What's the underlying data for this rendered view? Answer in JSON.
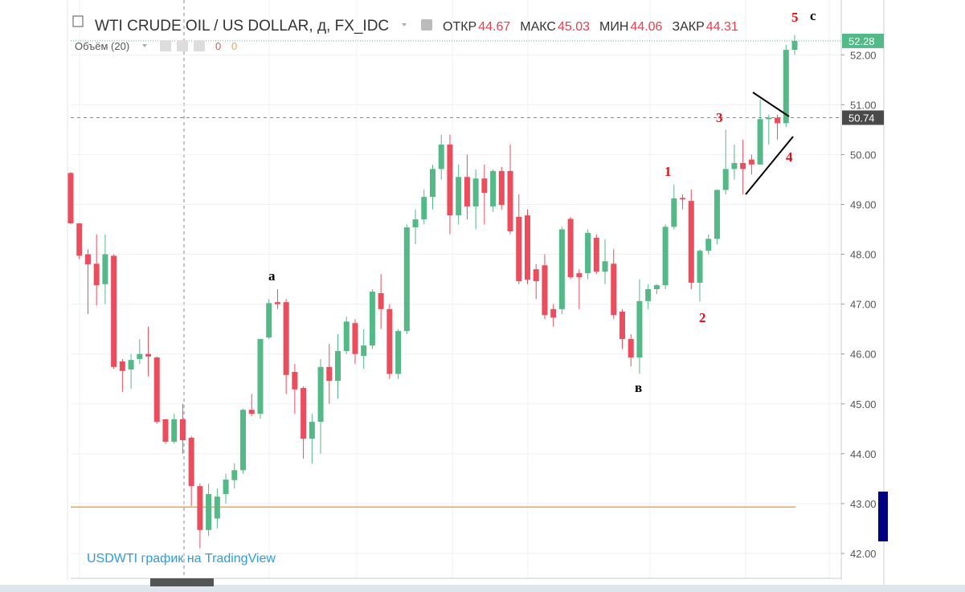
{
  "header": {
    "symbol": "WTI CRUDE OIL / US DOLLAR, д, FX_IDC",
    "ohlc": [
      {
        "label": "ОТКР",
        "value": 44.67
      },
      {
        "label": "МАКС",
        "value": 45.03
      },
      {
        "label": "МИН",
        "value": 44.06
      },
      {
        "label": "ЗАКР",
        "value": 44.31
      }
    ],
    "volume_label": "Объём (20)",
    "volume_values": [
      0,
      0
    ]
  },
  "chart_data": {
    "type": "candlestick",
    "open": [
      49.63,
      48.62,
      48.0,
      47.81,
      47.4,
      47.97,
      45.85,
      45.69,
      45.9,
      46.0,
      45.93,
      44.69,
      44.24,
      44.69,
      44.32,
      43.35,
      42.47,
      42.7,
      43.19,
      43.47,
      43.67,
      44.88,
      44.8,
      46.33,
      47.04,
      47.04,
      45.64,
      45.32,
      44.3,
      44.64,
      45.74,
      45.46,
      46.06,
      46.62,
      45.96,
      46.17,
      47.22,
      46.9,
      45.6,
      46.46,
      48.54,
      48.7,
      49.15,
      49.71,
      50.2,
      48.78,
      49.55,
      48.96,
      49.52,
      48.96,
      49.67,
      49.67,
      48.75,
      48.78,
      47.7,
      47.78,
      46.9,
      46.9,
      48.71,
      47.62,
      47.62,
      48.33,
      47.65,
      47.81,
      46.85,
      46.3,
      45.93,
      47.06,
      47.3,
      47.38,
      48.55,
      49.13,
      49.07,
      47.43,
      48.07,
      48.31,
      49.29,
      49.71,
      49.83,
      49.9,
      49.8,
      50.71,
      50.74,
      50.63,
      52.1
    ],
    "high": [
      49.65,
      48.62,
      48.1,
      48.4,
      48.4,
      48.0,
      45.9,
      46.0,
      46.3,
      46.55,
      45.95,
      44.7,
      44.8,
      45.0,
      44.35,
      43.4,
      43.4,
      43.3,
      43.6,
      43.8,
      44.9,
      45.2,
      46.3,
      47.1,
      47.3,
      47.1,
      45.8,
      45.35,
      44.8,
      45.9,
      46.2,
      46.4,
      46.75,
      46.7,
      46.5,
      47.3,
      47.6,
      47.0,
      46.5,
      48.6,
      48.9,
      49.3,
      49.8,
      50.4,
      50.4,
      49.8,
      50.0,
      49.7,
      49.8,
      49.7,
      49.75,
      50.2,
      49.2,
      48.9,
      47.8,
      48.0,
      47.0,
      48.55,
      48.75,
      47.7,
      48.5,
      48.4,
      48.3,
      48.1,
      46.9,
      46.4,
      47.5,
      47.4,
      47.4,
      48.6,
      49.4,
      49.2,
      49.3,
      48.1,
      48.4,
      49.3,
      50.5,
      50.2,
      50.3,
      50.0,
      51.1,
      50.8,
      50.8,
      52.2,
      52.4
    ],
    "low": [
      48.6,
      47.9,
      46.8,
      46.97,
      47.0,
      45.7,
      45.24,
      45.3,
      45.8,
      45.55,
      44.6,
      44.2,
      44.2,
      44.0,
      42.95,
      42.1,
      42.35,
      42.5,
      43.0,
      43.3,
      43.6,
      44.75,
      44.7,
      46.3,
      46.9,
      45.2,
      44.8,
      43.9,
      43.8,
      44.0,
      45.0,
      45.1,
      46.0,
      45.8,
      45.7,
      46.1,
      46.5,
      45.5,
      45.5,
      46.4,
      48.2,
      48.6,
      48.9,
      49.5,
      48.4,
      48.6,
      48.7,
      48.5,
      48.6,
      48.85,
      48.9,
      48.4,
      47.4,
      47.4,
      47.1,
      46.7,
      46.55,
      46.8,
      47.5,
      46.9,
      47.5,
      47.6,
      47.4,
      46.7,
      46.1,
      45.75,
      45.6,
      46.9,
      47.2,
      47.3,
      48.5,
      48.9,
      47.3,
      47.05,
      48.0,
      48.2,
      49.2,
      49.5,
      49.2,
      49.6,
      49.8,
      50.2,
      50.3,
      50.55,
      52.0
    ],
    "close": [
      48.62,
      47.97,
      47.8,
      47.38,
      48.0,
      45.74,
      45.66,
      45.88,
      46.0,
      45.95,
      44.64,
      44.24,
      44.69,
      44.27,
      43.35,
      42.47,
      43.19,
      43.14,
      43.48,
      43.67,
      44.88,
      44.8,
      46.3,
      47.02,
      47.0,
      45.58,
      45.29,
      44.3,
      44.64,
      45.74,
      45.46,
      46.06,
      46.65,
      46.0,
      46.17,
      47.25,
      46.9,
      45.6,
      46.46,
      48.54,
      48.7,
      49.15,
      49.71,
      50.2,
      48.78,
      49.55,
      48.96,
      49.52,
      49.23,
      49.67,
      48.99,
      48.46,
      47.46,
      47.49,
      47.46,
      46.78,
      46.73,
      48.5,
      47.54,
      47.54,
      48.43,
      47.65,
      47.86,
      46.78,
      46.3,
      45.93,
      47.06,
      47.3,
      47.38,
      48.55,
      49.12,
      49.1,
      47.43,
      48.07,
      48.31,
      49.29,
      49.71,
      49.83,
      49.71,
      49.8,
      50.71,
      50.74,
      50.63,
      52.1,
      52.28
    ],
    "up_color": "#53b987",
    "down_color": "#eb4d5c",
    "ylim": [
      41.5,
      53.1
    ],
    "yticks": [
      {
        "value": 42,
        "label": "42.00"
      },
      {
        "value": 43,
        "label": "43.00"
      },
      {
        "value": 44,
        "label": "44.00"
      },
      {
        "value": 45,
        "label": "45.00"
      },
      {
        "value": 46,
        "label": "46.00"
      },
      {
        "value": 47,
        "label": "47.00"
      },
      {
        "value": 48,
        "label": "48.00"
      },
      {
        "value": 49,
        "label": "49.00"
      },
      {
        "value": 50,
        "label": "50.00"
      },
      {
        "value": 51,
        "label": "51.00"
      },
      {
        "value": 52,
        "label": "52.00"
      }
    ],
    "grid": true,
    "last_price": 52.28,
    "crosshair_price": 50.74,
    "horizontal_line": {
      "value": 42.93,
      "color": "#f0a830"
    },
    "annotations": [
      "a",
      "в",
      "1",
      "2",
      "3",
      "4",
      "5",
      "c"
    ],
    "watermark": "USDWTI график на TradingView"
  }
}
